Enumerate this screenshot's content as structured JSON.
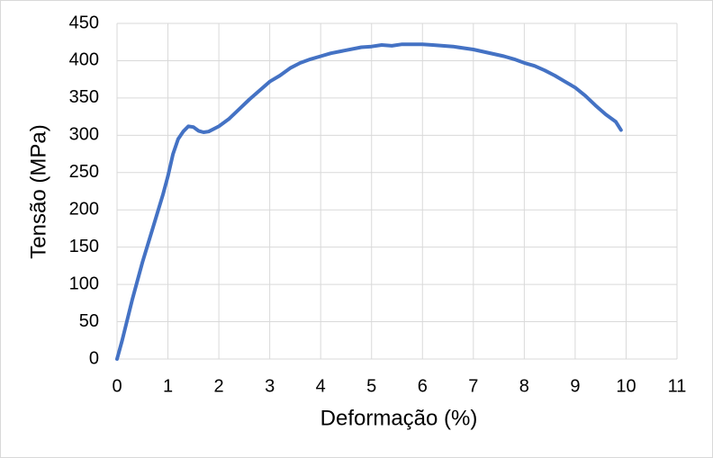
{
  "chart_data": {
    "type": "line",
    "x_label": "Deformação (%)",
    "y_label": "Tensão (MPa)",
    "x": [
      0,
      0.1,
      0.3,
      0.5,
      0.7,
      0.9,
      1.0,
      1.1,
      1.2,
      1.3,
      1.4,
      1.5,
      1.6,
      1.7,
      1.8,
      2.0,
      2.2,
      2.4,
      2.6,
      2.8,
      3.0,
      3.2,
      3.4,
      3.6,
      3.8,
      4.0,
      4.2,
      4.5,
      4.8,
      5.0,
      5.2,
      5.4,
      5.6,
      5.8,
      6.0,
      6.2,
      6.4,
      6.6,
      6.8,
      7.0,
      7.2,
      7.4,
      7.6,
      7.8,
      8.0,
      8.2,
      8.4,
      8.6,
      8.8,
      9.0,
      9.2,
      9.4,
      9.6,
      9.8,
      9.9
    ],
    "values": [
      0,
      25,
      80,
      130,
      175,
      220,
      245,
      275,
      295,
      305,
      312,
      311,
      306,
      304,
      305,
      312,
      322,
      335,
      348,
      360,
      372,
      380,
      390,
      397,
      402,
      406,
      410,
      414,
      418,
      419,
      421,
      420,
      422,
      422,
      422,
      421,
      420,
      419,
      417,
      415,
      412,
      409,
      406,
      402,
      397,
      393,
      387,
      380,
      372,
      364,
      353,
      340,
      328,
      318,
      307
    ],
    "color": "#4472c4",
    "xlim": [
      0,
      11
    ],
    "xticks": [
      0,
      1,
      2,
      3,
      4,
      5,
      6,
      7,
      8,
      9,
      10,
      11
    ],
    "ylim": [
      0,
      450
    ],
    "yticks": [
      0,
      50,
      100,
      150,
      200,
      250,
      300,
      350,
      400,
      450
    ],
    "grid": true
  }
}
